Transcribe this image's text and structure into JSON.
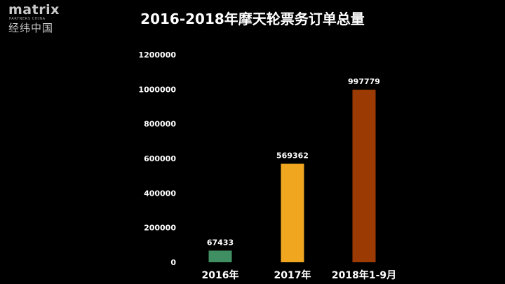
{
  "logo": {
    "word": "matrix",
    "sub": "PARTNERS CHINA",
    "cn": "经纬中国"
  },
  "chart_data": {
    "type": "bar",
    "title": "2016-2018年摩天轮票务订单总量",
    "xlabel": "",
    "ylabel": "",
    "categories": [
      "2016年",
      "2017年",
      "2018年1-9月"
    ],
    "values": [
      67433,
      569362,
      997779
    ],
    "value_labels": [
      "67433",
      "569362",
      "997779"
    ],
    "colors": [
      "#3f8f63",
      "#f0a71f",
      "#9c3a04"
    ],
    "ylim": [
      0,
      1200000
    ],
    "yticks": [
      0,
      200000,
      400000,
      600000,
      800000,
      1000000,
      1200000
    ],
    "ytick_labels": [
      "0",
      "200000",
      "400000",
      "600000",
      "800000",
      "1000000",
      "1200000"
    ],
    "grid": false,
    "legend": "none"
  }
}
